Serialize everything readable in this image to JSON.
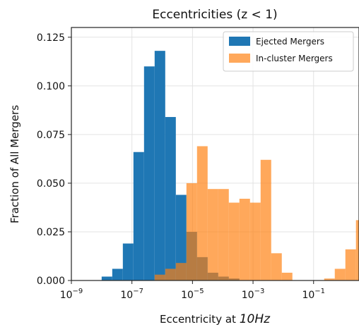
{
  "chart_data": {
    "type": "bar",
    "title": "Eccentricities (z < 1)",
    "xlabel": "Eccentricity at ",
    "xlabel_math": "10Hz",
    "ylabel": "Fraction of All Mergers",
    "xscale": "log",
    "xlim_log10": [
      -9,
      0.5
    ],
    "ylim": [
      0,
      0.13
    ],
    "grid": true,
    "legend_position": "upper right",
    "xticks": [
      {
        "base": "10",
        "exp": "−9",
        "log10": -9
      },
      {
        "base": "10",
        "exp": "−7",
        "log10": -7
      },
      {
        "base": "10",
        "exp": "−5",
        "log10": -5
      },
      {
        "base": "10",
        "exp": "−3",
        "log10": -3
      },
      {
        "base": "10",
        "exp": "−1",
        "log10": -1
      }
    ],
    "yticks": [
      "0.000",
      "0.025",
      "0.050",
      "0.075",
      "0.100",
      "0.125"
    ],
    "bin_width_log10": 0.35,
    "series": [
      {
        "name": "Ejected Mergers",
        "color": "#1f77b4",
        "opacity": 1.0,
        "bins": [
          {
            "left_log10": -8.0,
            "value": 0.002
          },
          {
            "left_log10": -7.65,
            "value": 0.006
          },
          {
            "left_log10": -7.3,
            "value": 0.019
          },
          {
            "left_log10": -6.95,
            "value": 0.066
          },
          {
            "left_log10": -6.6,
            "value": 0.11
          },
          {
            "left_log10": -6.25,
            "value": 0.118
          },
          {
            "left_log10": -5.9,
            "value": 0.084
          },
          {
            "left_log10": -5.55,
            "value": 0.044
          },
          {
            "left_log10": -5.2,
            "value": 0.025
          },
          {
            "left_log10": -4.85,
            "value": 0.012
          },
          {
            "left_log10": -4.5,
            "value": 0.004
          },
          {
            "left_log10": -4.15,
            "value": 0.002
          },
          {
            "left_log10": -3.8,
            "value": 0.001
          }
        ]
      },
      {
        "name": "In-cluster Mergers",
        "color": "#ff7f0e",
        "opacity": 0.68,
        "bins": [
          {
            "left_log10": -6.25,
            "value": 0.003
          },
          {
            "left_log10": -5.9,
            "value": 0.006
          },
          {
            "left_log10": -5.55,
            "value": 0.009
          },
          {
            "left_log10": -5.2,
            "value": 0.05
          },
          {
            "left_log10": -4.85,
            "value": 0.069
          },
          {
            "left_log10": -4.5,
            "value": 0.047
          },
          {
            "left_log10": -4.15,
            "value": 0.047
          },
          {
            "left_log10": -3.8,
            "value": 0.04
          },
          {
            "left_log10": -3.45,
            "value": 0.042
          },
          {
            "left_log10": -3.1,
            "value": 0.04
          },
          {
            "left_log10": -2.75,
            "value": 0.062
          },
          {
            "left_log10": -2.4,
            "value": 0.014
          },
          {
            "left_log10": -2.05,
            "value": 0.004
          },
          {
            "left_log10": -0.65,
            "value": 0.001
          },
          {
            "left_log10": -0.3,
            "value": 0.006
          },
          {
            "left_log10": 0.05,
            "value": 0.016
          },
          {
            "left_log10": 0.4,
            "value": 0.031
          }
        ]
      }
    ]
  }
}
